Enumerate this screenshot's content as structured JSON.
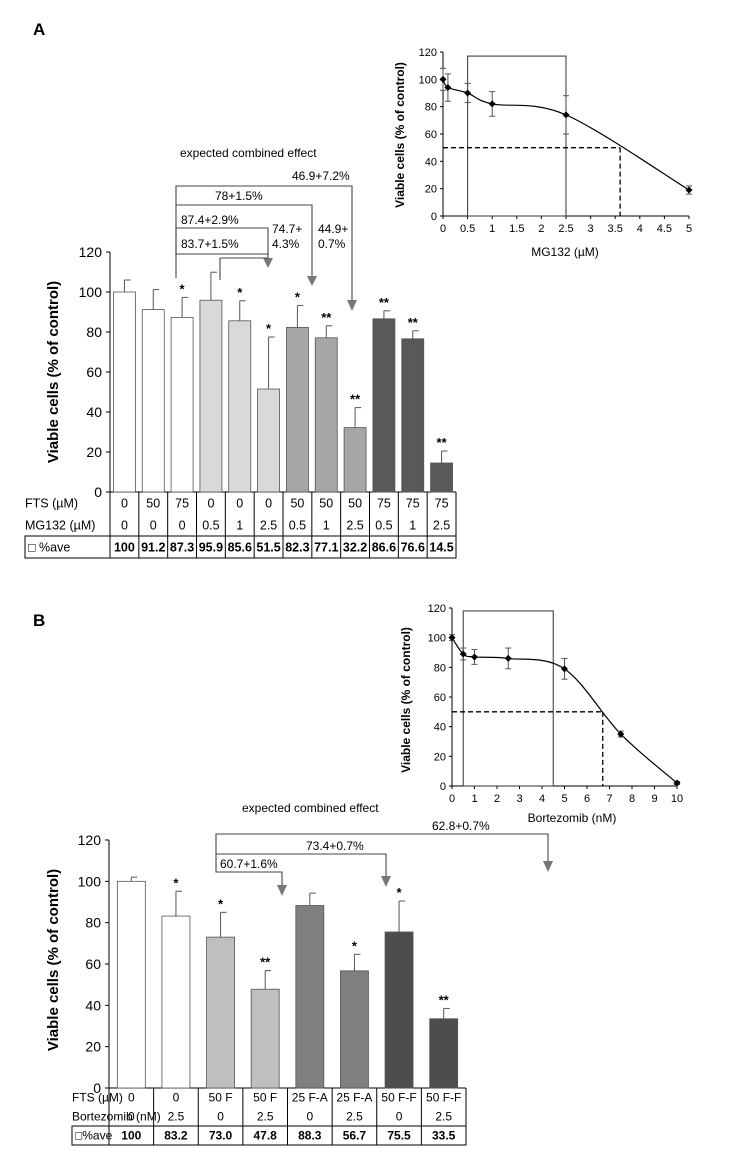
{
  "colors": {
    "ctrl": "#ffffff",
    "light": "#d9d9d9",
    "mid": "#a6a6a6",
    "dark": "#595959",
    "gray1": "#bfbfbf",
    "gray2": "#7f7f7f",
    "gray3": "#4d4d4d"
  },
  "chart_data": [
    {
      "id": "A",
      "panel_label": "A",
      "type": "bar",
      "ylabel": "Viable cells (% of control)",
      "ylim": [
        0,
        120
      ],
      "yticks": [
        "0",
        "20",
        "40",
        "60",
        "80",
        "100",
        "120"
      ],
      "values": [
        100,
        91.2,
        87.3,
        95.9,
        85.6,
        51.5,
        82.3,
        77.1,
        32.2,
        86.6,
        76.6,
        14.5
      ],
      "errors": [
        6,
        10,
        10,
        14,
        10,
        26,
        11,
        6,
        10,
        4,
        4,
        6
      ],
      "stars": [
        "",
        "",
        "*",
        "",
        "*",
        "*",
        "*",
        "**",
        "**",
        "**",
        "**",
        "**"
      ],
      "fills": [
        "ctrl",
        "ctrl",
        "ctrl",
        "light",
        "light",
        "light",
        "mid",
        "mid",
        "mid",
        "dark",
        "dark",
        "dark"
      ],
      "table": [
        {
          "label": "FTS (µM)",
          "cells": [
            "0",
            "50",
            "75",
            "0",
            "0",
            "0",
            "50",
            "50",
            "50",
            "75",
            "75",
            "75"
          ]
        },
        {
          "label": "MG132 (µM)",
          "cells": [
            "0",
            "0",
            "0",
            "0.5",
            "1",
            "2.5",
            "0.5",
            "1",
            "2.5",
            "0.5",
            "1",
            "2.5"
          ]
        },
        {
          "label": "□ %ave",
          "cells": [
            "100",
            "91.2",
            "87.3",
            "95.9",
            "85.6",
            "51.5",
            "82.3",
            "77.1",
            "32.2",
            "86.6",
            "76.6",
            "14.5"
          ]
        }
      ],
      "annotation_title": "expected combined effect",
      "annotations": [
        "46.9+7.2%",
        "78+1.5%",
        "87.4+2.9%",
        "83.7+1.5%",
        "74.7+",
        "4.3%",
        "44.9+",
        "0.7%"
      ]
    },
    {
      "id": "A-inset",
      "type": "line",
      "xlabel": "MG132 (µM)",
      "ylabel": "Viable cells (% of control)",
      "xlim": [
        0,
        5
      ],
      "ylim": [
        0,
        120
      ],
      "xticks": [
        "0",
        "0.5",
        "1",
        "1.5",
        "2",
        "2.5",
        "3",
        "3.5",
        "4",
        "4.5",
        "5"
      ],
      "yticks": [
        "0",
        "20",
        "40",
        "60",
        "80",
        "100",
        "120"
      ],
      "x": [
        0,
        0.1,
        0.5,
        1,
        2.5,
        5
      ],
      "y": [
        100,
        94,
        90,
        82,
        74,
        19
      ],
      "errors": [
        8,
        10,
        7,
        9,
        14,
        3
      ],
      "ic50": {
        "x": 3.6,
        "y": 50
      },
      "box": {
        "x": [
          0.5,
          2.5
        ],
        "y": [
          0,
          117
        ]
      }
    },
    {
      "id": "B",
      "panel_label": "B",
      "type": "bar",
      "ylabel": "Viable cells (% of control)",
      "ylim": [
        0,
        120
      ],
      "yticks": [
        "0",
        "20",
        "40",
        "60",
        "80",
        "100",
        "120"
      ],
      "values": [
        100,
        83.2,
        73.0,
        47.8,
        88.3,
        56.7,
        75.5,
        33.5
      ],
      "errors": [
        2,
        12,
        12,
        9,
        6,
        8,
        15,
        5
      ],
      "stars": [
        "",
        "*",
        "*",
        "**",
        "",
        "*",
        "*",
        "**"
      ],
      "fills": [
        "ctrl",
        "ctrl",
        "gray1",
        "gray1",
        "gray2",
        "gray2",
        "gray3",
        "gray3"
      ],
      "table": [
        {
          "label": "FTS (µM)",
          "cells": [
            "0",
            "0",
            "50 F",
            "50 F",
            "25 F-A",
            "25 F-A",
            "50 F-F",
            "50 F-F"
          ]
        },
        {
          "label": "Bortezomib (nM)",
          "cells": [
            "0",
            "2.5",
            "0",
            "2.5",
            "0",
            "2.5",
            "0",
            "2.5"
          ]
        },
        {
          "label": "□%ave",
          "cells": [
            "100",
            "83.2",
            "73.0",
            "47.8",
            "88.3",
            "56.7",
            "75.5",
            "33.5"
          ]
        }
      ],
      "annotation_title": "expected combined effect",
      "annotations": [
        "62.8+0.7%",
        "73.4+0.7%",
        "60.7+1.6%"
      ]
    },
    {
      "id": "B-inset",
      "type": "line",
      "xlabel": "Bortezomib (nM)",
      "ylabel": "Viable cells (% of control)",
      "xlim": [
        0,
        10
      ],
      "ylim": [
        0,
        120
      ],
      "xticks": [
        "0",
        "1",
        "2",
        "3",
        "4",
        "5",
        "6",
        "7",
        "8",
        "9",
        "10"
      ],
      "yticks": [
        "0",
        "20",
        "40",
        "60",
        "80",
        "100",
        "120"
      ],
      "x": [
        0,
        0.5,
        1,
        2.5,
        5,
        7.5,
        10
      ],
      "y": [
        100,
        89,
        87,
        86,
        79,
        35,
        2
      ],
      "errors": [
        2,
        4,
        5,
        7,
        7,
        2,
        1
      ],
      "ic50": {
        "x": 6.7,
        "y": 50
      },
      "box": {
        "x": [
          0.5,
          4.5
        ],
        "y": [
          0,
          118
        ]
      }
    }
  ]
}
